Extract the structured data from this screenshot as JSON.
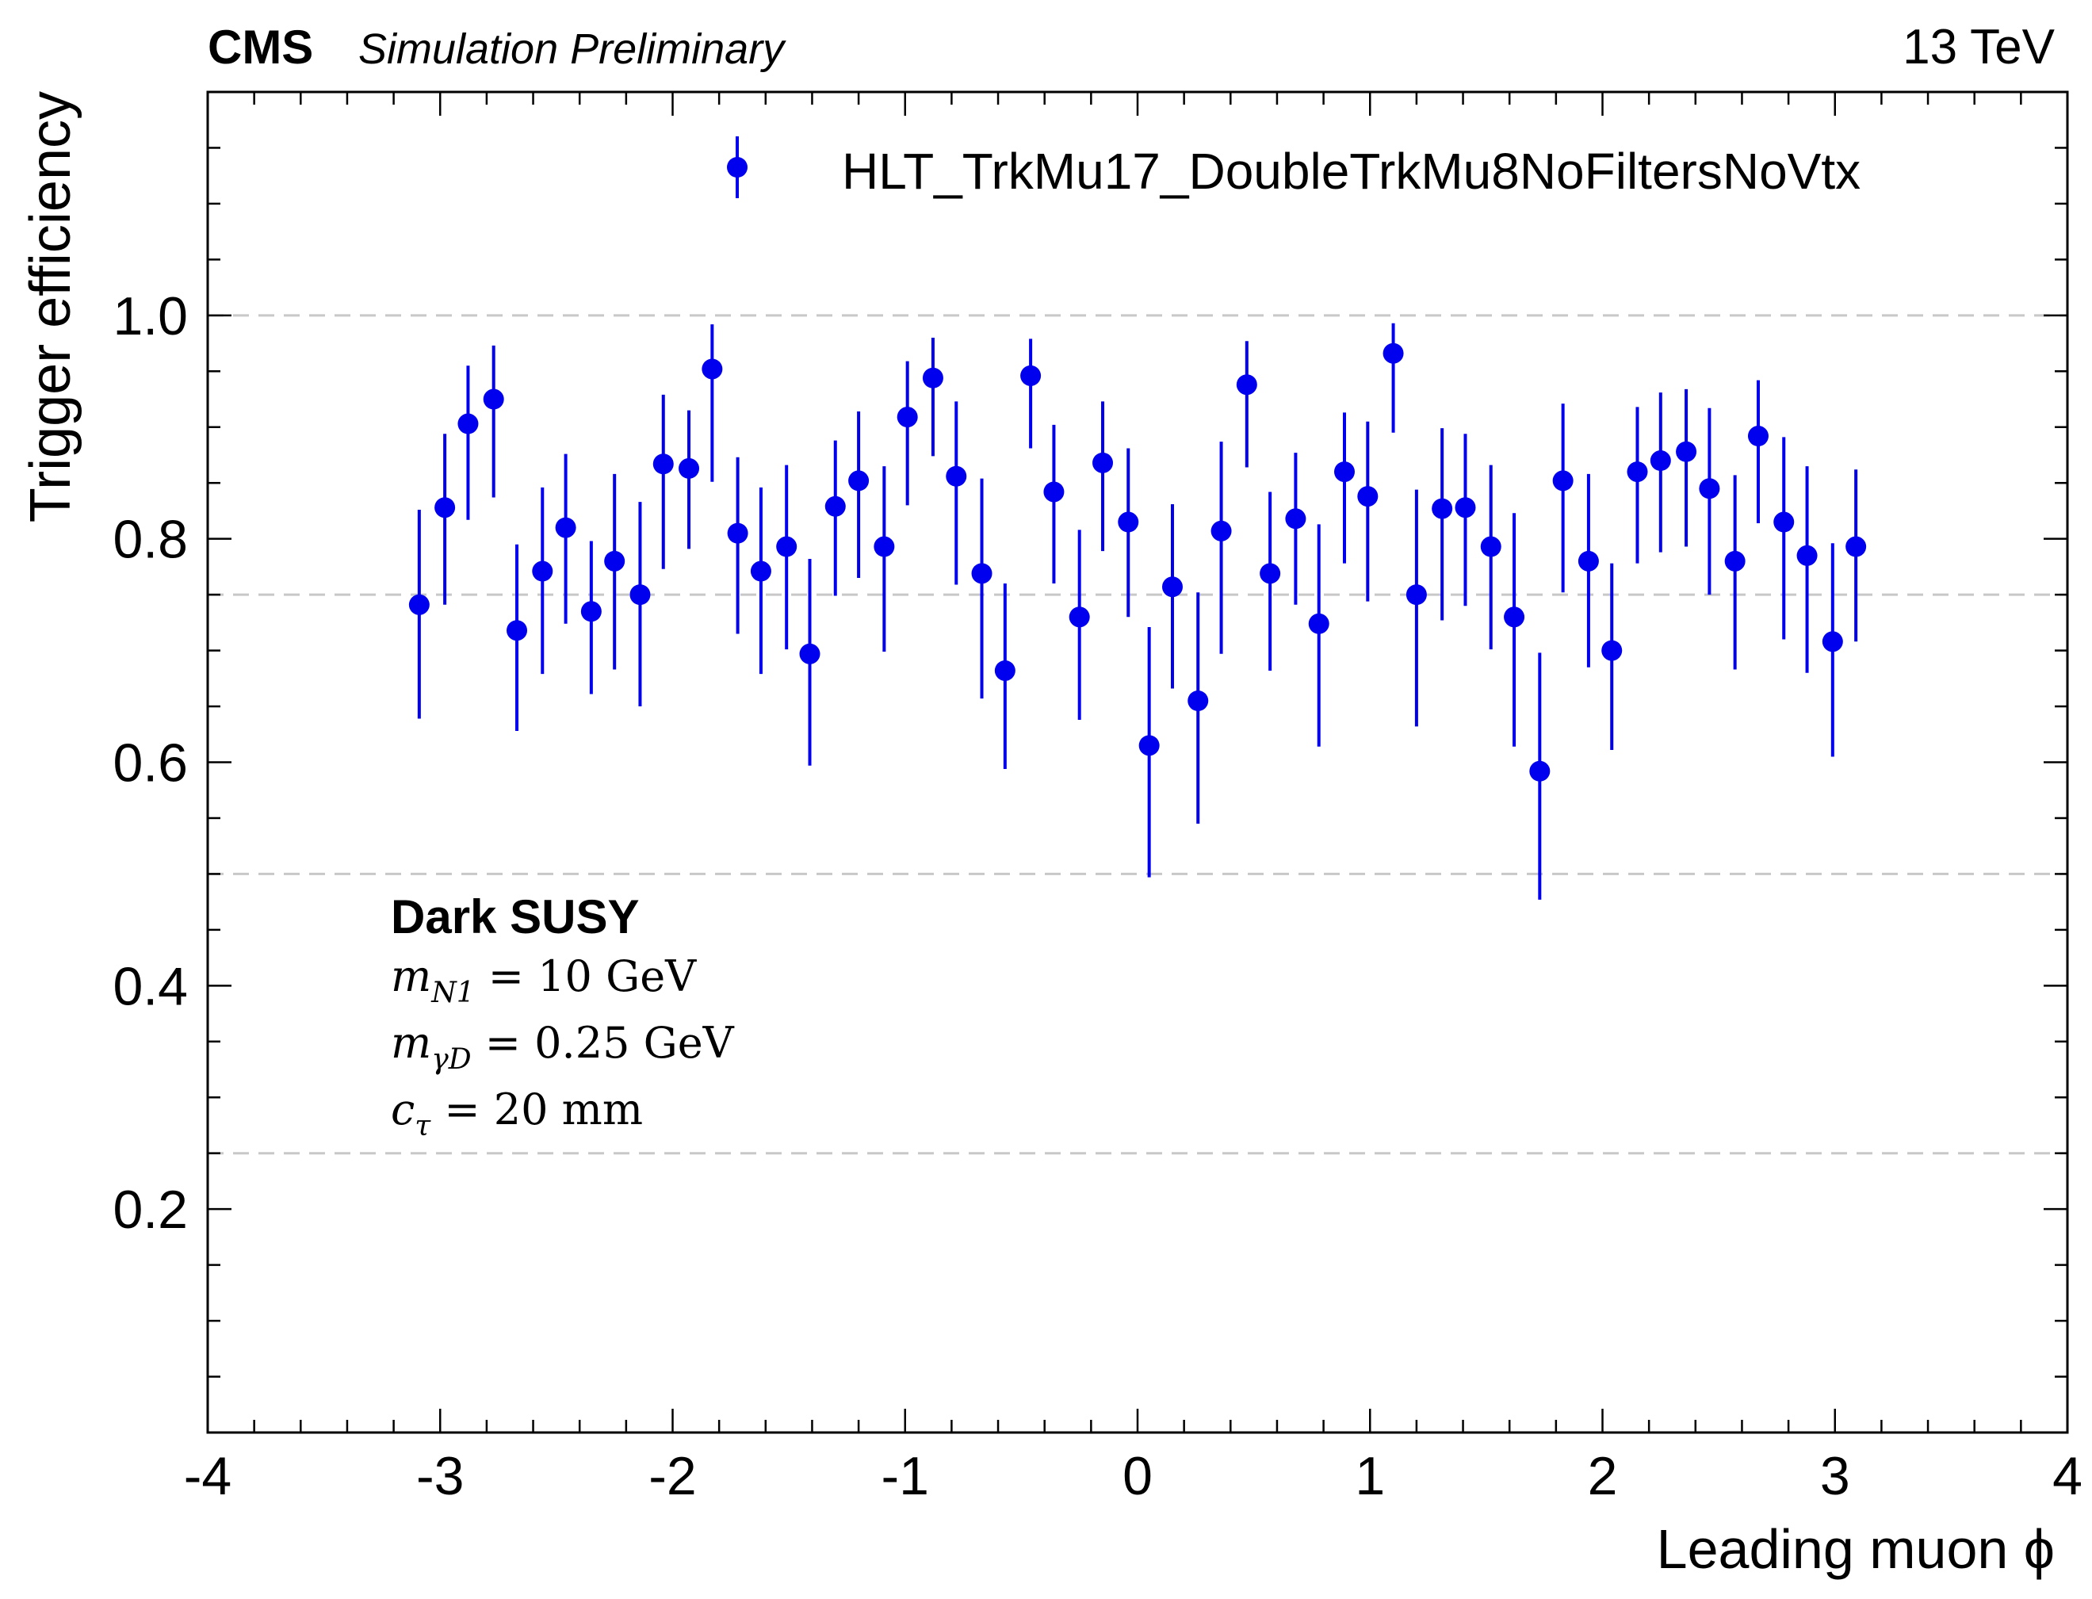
{
  "header": {
    "experiment": "CMS",
    "status": "Simulation Preliminary",
    "energy": "13 TeV"
  },
  "colors": {
    "marker": "#0000ee",
    "grid": "#c8c8c8",
    "axis": "#000000"
  },
  "annotation": {
    "title": "Dark SUSY",
    "lines": [
      {
        "sym": "m",
        "sub": "N1",
        "rest": " = 10 GeV"
      },
      {
        "sym": "m",
        "sub": "γD",
        "rest": " = 0.25 GeV"
      },
      {
        "sym": "c",
        "sub": "τ",
        "rest": " = 20 mm"
      }
    ]
  },
  "chart_data": {
    "type": "scatter",
    "xlabel": "Leading muon ϕ",
    "ylabel": "Trigger efficiency",
    "xlim": [
      -4,
      4
    ],
    "ylim": [
      0,
      1.2
    ],
    "xticks": [
      -4,
      -3,
      -2,
      -1,
      0,
      1,
      2,
      3,
      4
    ],
    "xtick_labels": [
      "-4",
      "-3",
      "-2",
      "-1",
      "0",
      "1",
      "2",
      "3",
      "4"
    ],
    "yticks": [
      0.2,
      0.4,
      0.6,
      0.8,
      1.0
    ],
    "ytick_labels": [
      "0.2",
      "0.4",
      "0.6",
      "0.8",
      "1.0"
    ],
    "grid": "horizontal dashed at 0.25, 0.5, 0.75, 1.0",
    "legend_position": "top-right",
    "series": [
      {
        "name": "HLT_TrkMu17_DoubleTrkMu8NoFiltersNoVtx",
        "x": [
          -3.09,
          -2.98,
          -2.88,
          -2.77,
          -2.67,
          -2.56,
          -2.46,
          -2.35,
          -2.25,
          -2.14,
          -2.04,
          -1.93,
          -1.83,
          -1.72,
          -1.62,
          -1.51,
          -1.41,
          -1.3,
          -1.2,
          -1.09,
          -0.99,
          -0.88,
          -0.78,
          -0.67,
          -0.57,
          -0.46,
          -0.36,
          -0.25,
          -0.15,
          -0.04,
          0.05,
          0.15,
          0.26,
          0.36,
          0.47,
          0.57,
          0.68,
          0.78,
          0.89,
          0.99,
          1.1,
          1.2,
          1.31,
          1.41,
          1.52,
          1.62,
          1.73,
          1.83,
          1.94,
          2.04,
          2.15,
          2.25,
          2.36,
          2.46,
          2.57,
          2.67,
          2.78,
          2.88,
          2.99,
          3.09
        ],
        "y": [
          0.741,
          0.828,
          0.903,
          0.925,
          0.718,
          0.771,
          0.81,
          0.735,
          0.78,
          0.75,
          0.867,
          0.863,
          0.952,
          0.805,
          0.771,
          0.793,
          0.697,
          0.829,
          0.852,
          0.793,
          0.909,
          0.944,
          0.856,
          0.769,
          0.682,
          0.946,
          0.842,
          0.73,
          0.868,
          0.815,
          0.615,
          0.757,
          0.655,
          0.807,
          0.938,
          0.769,
          0.818,
          0.724,
          0.86,
          0.838,
          0.966,
          0.75,
          0.827,
          0.828,
          0.793,
          0.73,
          0.592,
          0.852,
          0.78,
          0.7,
          0.86,
          0.87,
          0.878,
          0.845,
          0.78,
          0.892,
          0.815,
          0.785,
          0.708,
          0.793
        ],
        "yerr_low": [
          0.102,
          0.087,
          0.086,
          0.088,
          0.09,
          0.092,
          0.086,
          0.074,
          0.097,
          0.1,
          0.094,
          0.072,
          0.101,
          0.09,
          0.092,
          0.092,
          0.1,
          0.08,
          0.087,
          0.094,
          0.079,
          0.07,
          0.097,
          0.112,
          0.088,
          0.065,
          0.082,
          0.092,
          0.079,
          0.085,
          0.118,
          0.091,
          0.11,
          0.11,
          0.074,
          0.087,
          0.077,
          0.11,
          0.082,
          0.094,
          0.071,
          0.118,
          0.1,
          0.088,
          0.092,
          0.116,
          0.115,
          0.1,
          0.095,
          0.089,
          0.082,
          0.082,
          0.085,
          0.095,
          0.097,
          0.078,
          0.105,
          0.105,
          0.103,
          0.085
        ],
        "yerr_high": [
          0.085,
          0.066,
          0.052,
          0.048,
          0.077,
          0.075,
          0.066,
          0.063,
          0.078,
          0.083,
          0.062,
          0.052,
          0.04,
          0.068,
          0.075,
          0.073,
          0.085,
          0.059,
          0.062,
          0.072,
          0.05,
          0.036,
          0.067,
          0.085,
          0.078,
          0.033,
          0.06,
          0.078,
          0.055,
          0.066,
          0.106,
          0.074,
          0.097,
          0.08,
          0.039,
          0.073,
          0.059,
          0.089,
          0.053,
          0.067,
          0.027,
          0.094,
          0.072,
          0.066,
          0.073,
          0.093,
          0.106,
          0.069,
          0.078,
          0.078,
          0.058,
          0.061,
          0.056,
          0.072,
          0.077,
          0.05,
          0.076,
          0.08,
          0.088,
          0.069
        ]
      }
    ]
  }
}
